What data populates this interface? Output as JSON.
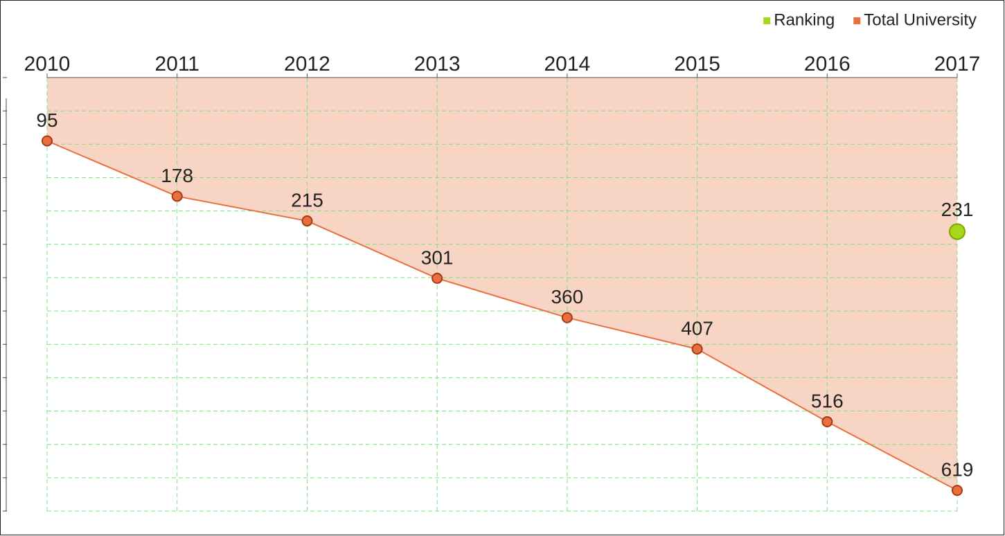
{
  "chart_data": {
    "type": "line",
    "categories": [
      "2010",
      "2011",
      "2012",
      "2013",
      "2014",
      "2015",
      "2016",
      "2017"
    ],
    "series": [
      {
        "name": "Ranking",
        "color": "#a6d71c",
        "values": [
          null,
          null,
          null,
          null,
          null,
          null,
          null,
          231
        ]
      },
      {
        "name": "Total University",
        "color": "#e8703f",
        "values": [
          95,
          178,
          215,
          301,
          360,
          407,
          516,
          619
        ],
        "area": true
      }
    ],
    "ylim": [
      0,
      650
    ],
    "yticks": [
      0,
      50,
      100,
      150,
      200,
      250,
      300,
      350,
      400,
      450,
      500,
      550,
      600,
      650
    ],
    "y_inverted": true,
    "x_axis_position": "top",
    "grid": true,
    "legend": "top-right"
  }
}
